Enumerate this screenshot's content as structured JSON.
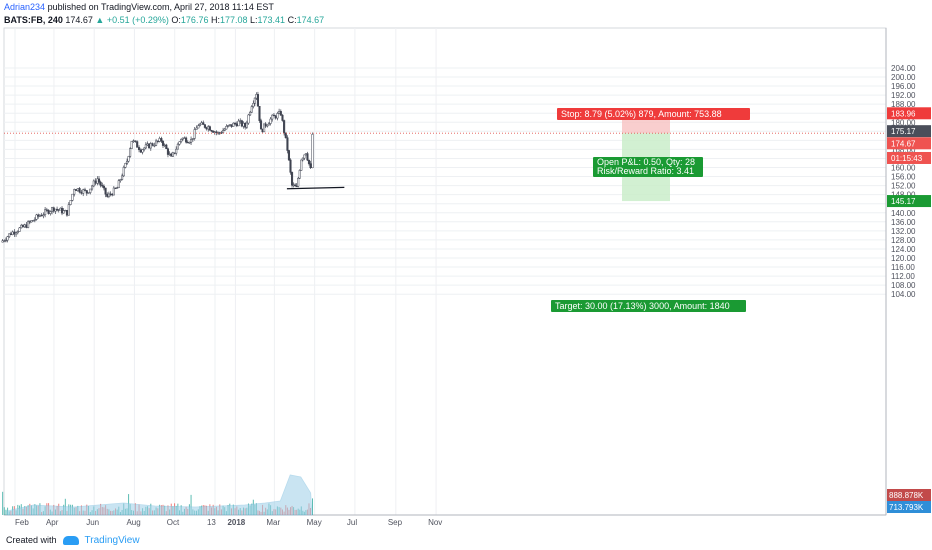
{
  "header": {
    "author": "Adrian234",
    "published_text": "published on TradingView.com, April 27, 2018 11:14 EST",
    "symbol": "BATS:FB, 240",
    "price": "174.67",
    "change_arrow": "▲",
    "change": "+0.51 (+0.29%)",
    "ohlc": {
      "o_label": "O:",
      "o": "176.76",
      "h_label": "H:",
      "h": "177.08",
      "l_label": "L:",
      "l": "173.41",
      "c_label": "C:",
      "c": "174.67"
    }
  },
  "footer": {
    "created_with": "Created with",
    "brand": "TradingView"
  },
  "chart_data": {
    "type": "candlestick",
    "symbol": "BATS:FB",
    "interval": "240",
    "ylim": [
      100,
      206
    ],
    "y_ticks": [
      "204.00",
      "200.00",
      "196.00",
      "192.00",
      "188.00",
      "184.00",
      "180.00",
      "176.00",
      "172.00",
      "168.00",
      "164.00",
      "160.00",
      "156.00",
      "152.00",
      "148.00",
      "144.00",
      "140.00",
      "136.00",
      "132.00",
      "128.00",
      "124.00",
      "120.00",
      "116.00",
      "112.00",
      "108.00",
      "104.00"
    ],
    "x_ticks": [
      "Feb",
      "Apr",
      "Jun",
      "Aug",
      "Oct",
      "13",
      "2018",
      "Mar",
      "May",
      "Jul",
      "Sep",
      "Nov"
    ],
    "price_path": [
      [
        "2017-01-10",
        127
      ],
      [
        "2017-01-25",
        131
      ],
      [
        "2017-02-15",
        134
      ],
      [
        "2017-03-10",
        139
      ],
      [
        "2017-03-31",
        142
      ],
      [
        "2017-04-20",
        140
      ],
      [
        "2017-05-01",
        151
      ],
      [
        "2017-05-20",
        149
      ],
      [
        "2017-06-05",
        155
      ],
      [
        "2017-06-20",
        147
      ],
      [
        "2017-07-05",
        151
      ],
      [
        "2017-07-20",
        163
      ],
      [
        "2017-07-27",
        172
      ],
      [
        "2017-08-10",
        168
      ],
      [
        "2017-08-25",
        170
      ],
      [
        "2017-09-10",
        172
      ],
      [
        "2017-09-25",
        164
      ],
      [
        "2017-10-10",
        173
      ],
      [
        "2017-10-25",
        172
      ],
      [
        "2017-11-05",
        179
      ],
      [
        "2017-11-20",
        178
      ],
      [
        "2017-12-05",
        175
      ],
      [
        "2017-12-20",
        178
      ],
      [
        "2018-01-05",
        180
      ],
      [
        "2018-01-15",
        178
      ],
      [
        "2018-01-25",
        188
      ],
      [
        "2018-02-01",
        193
      ],
      [
        "2018-02-08",
        176
      ],
      [
        "2018-02-15",
        179
      ],
      [
        "2018-02-25",
        182
      ],
      [
        "2018-03-10",
        184
      ],
      [
        "2018-03-20",
        168
      ],
      [
        "2018-03-27",
        152
      ],
      [
        "2018-04-03",
        151
      ],
      [
        "2018-04-10",
        164
      ],
      [
        "2018-04-17",
        167
      ],
      [
        "2018-04-24",
        159
      ],
      [
        "2018-04-27",
        174.67
      ]
    ],
    "annotations": {
      "current_price": 174.67,
      "horizontal_line": 175.17,
      "support_line": {
        "from": [
          "2018-03-20",
          150.6
        ],
        "to": [
          "2018-06-15",
          151.2
        ]
      },
      "position": {
        "entry": 175.17,
        "stop": 183.96,
        "target": 145.17,
        "stop_label": "Stop: 8.79 (5.02%) 879, Amount: 753.88",
        "target_label": "Target: 30.00 (17.13%) 3000, Amount: 1840",
        "pnl_label": "Open P&L: 0.50, Qty: 28",
        "rr_label": "Risk/Reward Ratio: 3.41"
      }
    },
    "axis_labels": {
      "stop_price": "183.96",
      "entry_price": "175.17",
      "current_price": "174.67",
      "countdown": "01:15:43",
      "target_price": "145.17",
      "volume_1": "888.878K",
      "volume_2": "713.793K"
    },
    "colors": {
      "up": "#26a69a",
      "down": "#ef5350",
      "candle_body": "#3f4350",
      "stop_zone": "#f7c2c2",
      "target_zone": "#c7ecc7",
      "stop_tag": "#ef3b3b",
      "target_tag": "#1a9a33",
      "volume_ma": "#9ecfe8"
    }
  }
}
